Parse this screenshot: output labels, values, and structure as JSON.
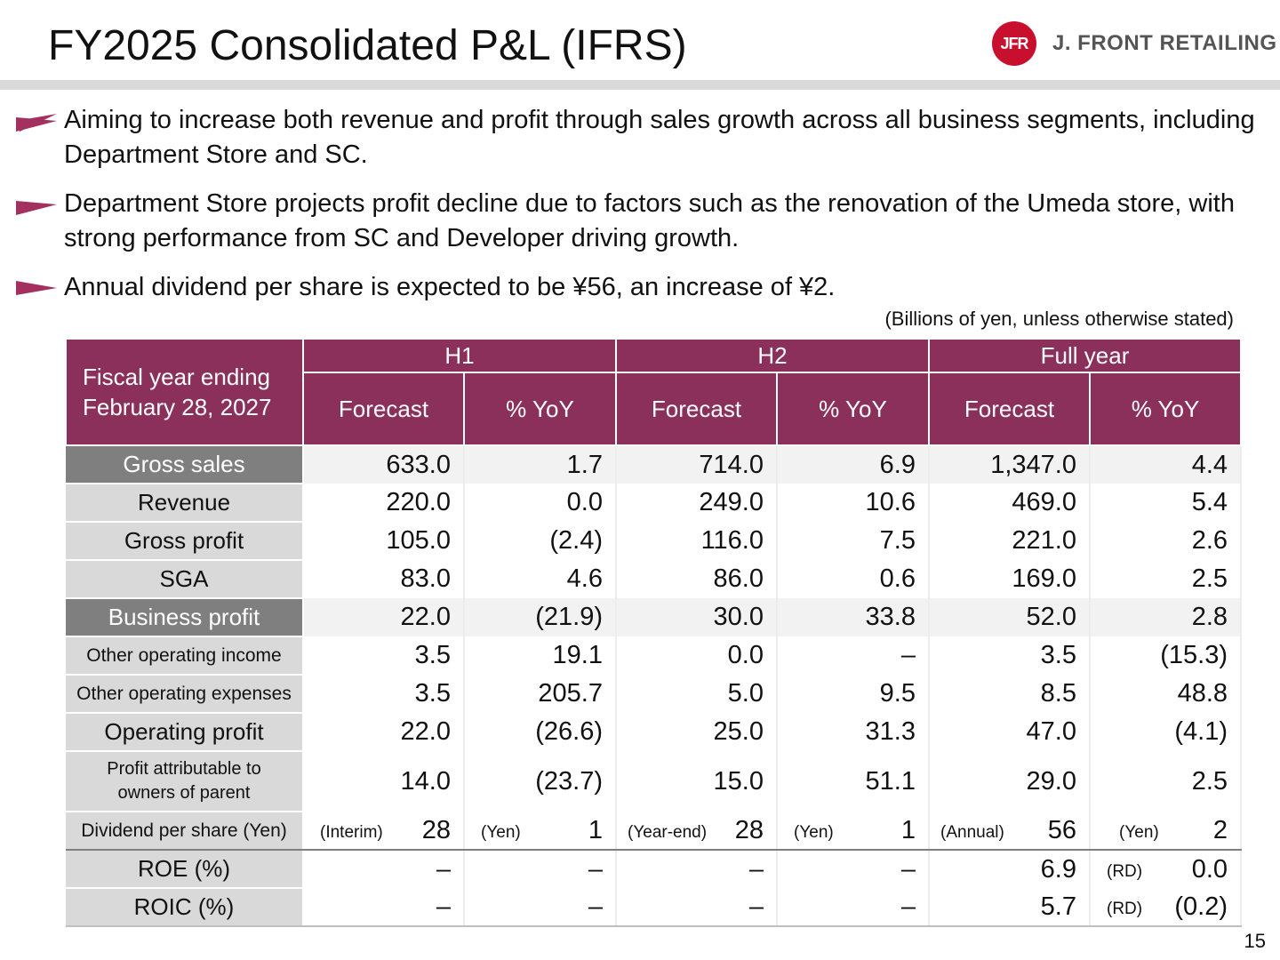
{
  "title": "FY2025 Consolidated P&L (IFRS)",
  "logo": {
    "mark": "JFR",
    "name": "J. FRONT RETAILING"
  },
  "bullets": [
    "Aiming to increase both revenue and profit through sales growth across all business segments, including Department Store and SC.",
    "Department Store projects profit decline due to factors such as the renovation of the Umeda store, with strong performance from SC and Developer driving growth.",
    "Annual dividend per share is expected to be ¥56, an increase of ¥2."
  ],
  "unit_note": "(Billions of yen, unless otherwise stated)",
  "table": {
    "corner": "Fiscal year ending February 28, 2027",
    "periods": [
      "H1",
      "H2",
      "Full year"
    ],
    "subheaders": [
      "Forecast",
      "% YoY",
      "Forecast",
      "% YoY",
      "Forecast",
      "% YoY"
    ],
    "rows": [
      {
        "label": "Gross sales",
        "values": [
          "633.0",
          "1.7",
          "714.0",
          "6.9",
          "1,347.0",
          "4.4"
        ]
      },
      {
        "label": "Revenue",
        "values": [
          "220.0",
          "0.0",
          "249.0",
          "10.6",
          "469.0",
          "5.4"
        ]
      },
      {
        "label": "Gross profit",
        "values": [
          "105.0",
          "(2.4)",
          "116.0",
          "7.5",
          "221.0",
          "2.6"
        ]
      },
      {
        "label": "SGA",
        "values": [
          "83.0",
          "4.6",
          "86.0",
          "0.6",
          "169.0",
          "2.5"
        ]
      },
      {
        "label": "Business profit",
        "values": [
          "22.0",
          "(21.9)",
          "30.0",
          "33.8",
          "52.0",
          "2.8"
        ]
      },
      {
        "label": "Other operating income",
        "values": [
          "3.5",
          "19.1",
          "0.0",
          "–",
          "3.5",
          "(15.3)"
        ]
      },
      {
        "label": "Other operating expenses",
        "values": [
          "3.5",
          "205.7",
          "5.0",
          "9.5",
          "8.5",
          "48.8"
        ]
      },
      {
        "label": "Operating profit",
        "values": [
          "22.0",
          "(26.6)",
          "25.0",
          "31.3",
          "47.0",
          "(4.1)"
        ]
      },
      {
        "label_line1": "Profit attributable to",
        "label_line2": "owners of parent",
        "values": [
          "14.0",
          "(23.7)",
          "15.0",
          "51.1",
          "29.0",
          "2.5"
        ]
      }
    ],
    "dps": {
      "label": "Dividend per share (Yen)",
      "tags": [
        "(Interim)",
        "(Yen)",
        "(Year-end)",
        "(Yen)",
        "(Annual)",
        "(Yen)"
      ],
      "values": [
        "28",
        "1",
        "28",
        "1",
        "56",
        "2"
      ]
    },
    "roe": {
      "label": "ROE (%)",
      "values": [
        "–",
        "–",
        "–",
        "–",
        "6.9",
        "0.0"
      ],
      "tag": "(RD)"
    },
    "roic": {
      "label": "ROIC (%)",
      "values": [
        "–",
        "–",
        "–",
        "–",
        "5.7",
        "(0.2)"
      ],
      "tag": "(RD)"
    }
  },
  "page_number": "15",
  "colors": {
    "header": "#8b305b",
    "label_dark": "#7f7f7f",
    "label_light": "#d9d9d9",
    "arrow": "#a3305f",
    "logo": "#c8102e"
  }
}
